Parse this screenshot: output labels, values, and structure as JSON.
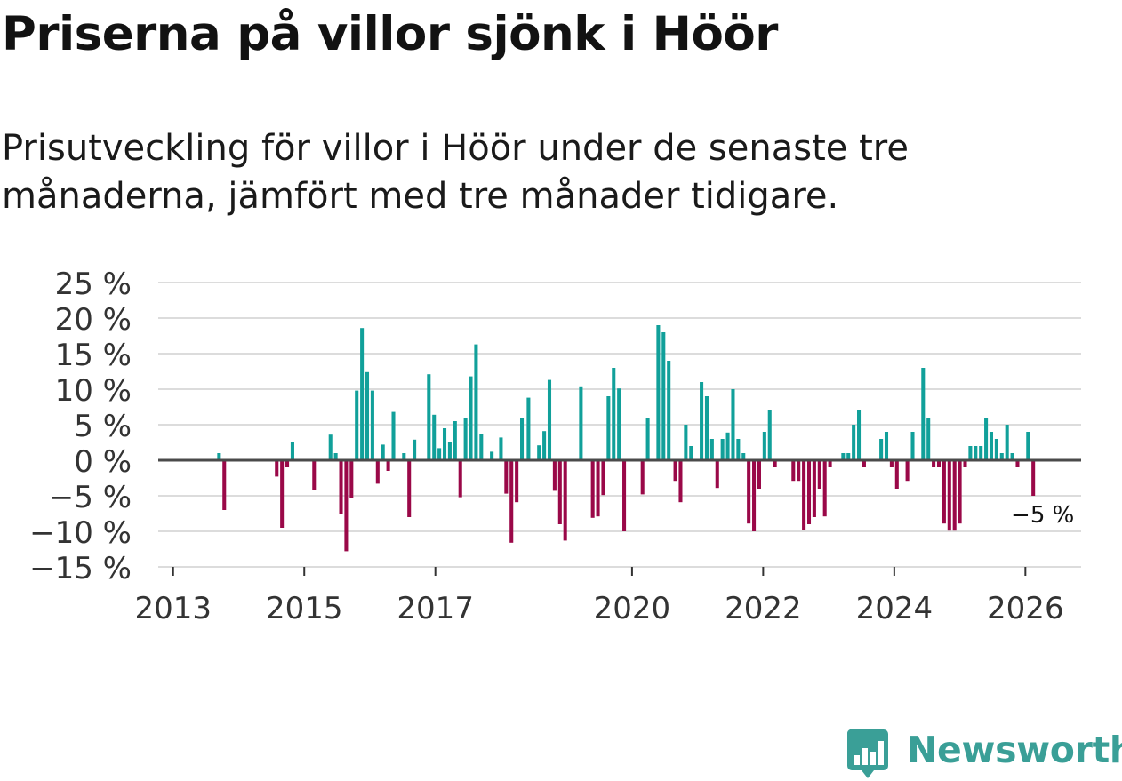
{
  "header": {
    "title": "Priserna på villor sjönk i Höör",
    "subtitle": "Prisutveckling för villor i Höör under de senaste tre månaderna, jämfört med tre månader tidigare."
  },
  "brand": {
    "name": "Newsworthy",
    "icon": "bar-chart-speech-bubble-icon",
    "color": "#3a9f97"
  },
  "colors": {
    "positive": "#11a09a",
    "negative": "#9a0848",
    "gridline": "#dcdcdc",
    "zeroline": "#4a4a4a",
    "ticktext": "#333333"
  },
  "chart_data": {
    "type": "bar",
    "title": "Priserna på villor sjönk i Höör",
    "xlabel": "",
    "ylabel": "",
    "ylim": [
      -15,
      25
    ],
    "xlim": [
      2012.8,
      2026.85
    ],
    "yticks": [
      25,
      20,
      15,
      10,
      5,
      0,
      -5,
      -10,
      -15
    ],
    "ytick_labels": [
      "25 %",
      "20 %",
      "15 %",
      "10 %",
      "5 %",
      "0 %",
      "−5 %",
      "−10 %",
      "−15 %"
    ],
    "xticks": [
      2013,
      2015,
      2017,
      2020,
      2022,
      2024,
      2026
    ],
    "xtick_labels": [
      "2013",
      "2015",
      "2017",
      "2020",
      "2022",
      "2024",
      "2026"
    ],
    "grid": true,
    "bar_width_years": 0.055,
    "annotation": {
      "text": "−5 %",
      "x": 2026.1,
      "value": -5
    },
    "x": [
      2013.7,
      2013.78,
      2014.58,
      2014.66,
      2014.74,
      2014.82,
      2015.15,
      2015.4,
      2015.48,
      2015.56,
      2015.64,
      2015.72,
      2015.8,
      2015.88,
      2015.96,
      2016.04,
      2016.12,
      2016.2,
      2016.28,
      2016.36,
      2016.44,
      2016.52,
      2016.6,
      2016.68,
      2016.9,
      2016.98,
      2017.06,
      2017.14,
      2017.22,
      2017.3,
      2017.38,
      2017.46,
      2017.54,
      2017.62,
      2017.7,
      2017.78,
      2017.86,
      2018.0,
      2018.08,
      2018.16,
      2018.24,
      2018.32,
      2018.42,
      2018.5,
      2018.58,
      2018.66,
      2018.74,
      2018.82,
      2018.9,
      2018.98,
      2019.22,
      2019.4,
      2019.48,
      2019.56,
      2019.64,
      2019.72,
      2019.8,
      2019.88,
      2019.96,
      2020.16,
      2020.24,
      2020.4,
      2020.48,
      2020.56,
      2020.66,
      2020.74,
      2020.82,
      2020.9,
      2020.98,
      2021.06,
      2021.14,
      2021.22,
      2021.3,
      2021.38,
      2021.46,
      2021.54,
      2021.62,
      2021.7,
      2021.78,
      2021.86,
      2021.94,
      2022.02,
      2022.1,
      2022.18,
      2022.26,
      2022.46,
      2022.54,
      2022.62,
      2022.7,
      2022.78,
      2022.86,
      2022.94,
      2023.02,
      2023.22,
      2023.3,
      2023.38,
      2023.46,
      2023.54,
      2023.72,
      2023.8,
      2023.88,
      2023.96,
      2024.04,
      2024.12,
      2024.2,
      2024.28,
      2024.36,
      2024.44,
      2024.52,
      2024.6,
      2024.68,
      2024.76,
      2024.84,
      2024.92,
      2025.0,
      2025.08,
      2025.16,
      2025.24,
      2025.32,
      2025.4,
      2025.48,
      2025.56,
      2025.64,
      2025.72,
      2025.8,
      2025.88,
      2026.04,
      2026.12
    ],
    "values": [
      1,
      -7,
      -2.3,
      -9.5,
      -1,
      2.5,
      -4.2,
      3.6,
      1,
      -7.5,
      -12.8,
      -5.3,
      9.8,
      18.6,
      12.4,
      9.8,
      -3.3,
      2.2,
      -1.5,
      6.8,
      0,
      1,
      -8,
      2.9,
      12.1,
      6.4,
      1.7,
      4.5,
      2.6,
      5.5,
      -5.2,
      5.9,
      11.8,
      16.3,
      3.7,
      0,
      1.2,
      3.2,
      -4.7,
      -11.6,
      -5.9,
      6,
      8.8,
      0,
      2.1,
      4.1,
      11.3,
      -4.3,
      -9,
      -11.3,
      10.4,
      -8.1,
      -7.9,
      -4.9,
      9,
      13,
      10.1,
      -10,
      0,
      -4.8,
      6,
      19,
      18,
      14,
      -2.9,
      -5.9,
      5,
      2,
      0,
      11,
      9,
      3,
      -3.9,
      3,
      3.9,
      10,
      3,
      1,
      -8.9,
      -10,
      -4,
      4,
      7,
      -1,
      0,
      -2.9,
      -2.9,
      -9.8,
      -9,
      -8,
      -4,
      -7.9,
      -1,
      1,
      1,
      5,
      7,
      -1,
      0,
      3,
      4,
      -1,
      -4,
      0,
      -2.9,
      4,
      0,
      13,
      6,
      -1,
      -1,
      -8.9,
      -9.9,
      -9.9,
      -8.9,
      -1,
      2,
      2,
      2,
      6,
      4,
      3,
      1,
      5,
      1,
      -1,
      4,
      -5
    ]
  }
}
